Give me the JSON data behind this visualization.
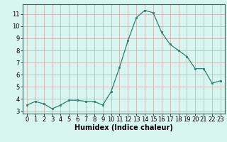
{
  "x": [
    0,
    1,
    2,
    3,
    4,
    5,
    6,
    7,
    8,
    9,
    10,
    11,
    12,
    13,
    14,
    15,
    16,
    17,
    18,
    19,
    20,
    21,
    22,
    23
  ],
  "y": [
    3.5,
    3.8,
    3.6,
    3.2,
    3.5,
    3.9,
    3.9,
    3.8,
    3.8,
    3.5,
    4.6,
    6.6,
    8.8,
    10.7,
    11.3,
    11.1,
    9.5,
    8.5,
    8.0,
    7.5,
    6.5,
    6.5,
    5.3,
    5.5
  ],
  "line_color": "#2d7d6e",
  "marker": "s",
  "marker_size": 2,
  "bg_color": "#d8f5f0",
  "grid_color": "#c8a8a8",
  "xlabel": "Humidex (Indice chaleur)",
  "xlim": [
    -0.5,
    23.5
  ],
  "ylim": [
    2.8,
    11.8
  ],
  "yticks": [
    3,
    4,
    5,
    6,
    7,
    8,
    9,
    10,
    11
  ],
  "xticks": [
    0,
    1,
    2,
    3,
    4,
    5,
    6,
    7,
    8,
    9,
    10,
    11,
    12,
    13,
    14,
    15,
    16,
    17,
    18,
    19,
    20,
    21,
    22,
    23
  ],
  "tick_fontsize": 6.0,
  "xlabel_fontsize": 7.0,
  "line_width": 0.9
}
